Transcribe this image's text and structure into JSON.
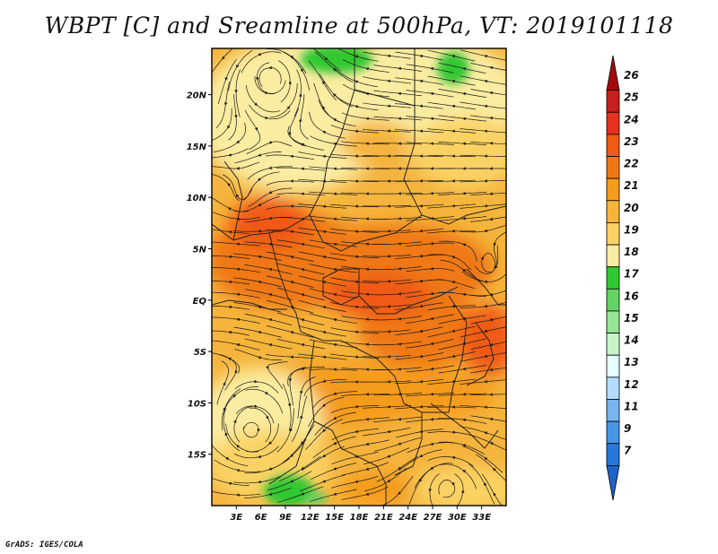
{
  "title": "WBPT [C] and Sreamline at 500hPa, VT: 2019101118",
  "credit": "GrADS: IGES/COLA",
  "map": {
    "lon_range": [
      0,
      36
    ],
    "lat_range": [
      -20,
      24.5
    ],
    "lon_ticks": [
      {
        "value": 3,
        "label": "3E"
      },
      {
        "value": 6,
        "label": "6E"
      },
      {
        "value": 9,
        "label": "9E"
      },
      {
        "value": 12,
        "label": "12E"
      },
      {
        "value": 15,
        "label": "15E"
      },
      {
        "value": 18,
        "label": "18E"
      },
      {
        "value": 21,
        "label": "21E"
      },
      {
        "value": 24,
        "label": "24E"
      },
      {
        "value": 27,
        "label": "27E"
      },
      {
        "value": 30,
        "label": "30E"
      },
      {
        "value": 33,
        "label": "33E"
      }
    ],
    "lat_ticks": [
      {
        "value": 20,
        "label": "20N"
      },
      {
        "value": 15,
        "label": "15N"
      },
      {
        "value": 10,
        "label": "10N"
      },
      {
        "value": 5,
        "label": "5N"
      },
      {
        "value": 0,
        "label": "EQ"
      },
      {
        "value": -5,
        "label": "5S"
      },
      {
        "value": -10,
        "label": "10S"
      },
      {
        "value": -15,
        "label": "15S"
      }
    ],
    "field": "WBPT [C]",
    "vector_field": "Streamline 500hPa"
  },
  "colorbar": {
    "labels": [
      "26",
      "25",
      "24",
      "23",
      "22",
      "21",
      "20",
      "19",
      "18",
      "17",
      "16",
      "15",
      "14",
      "13",
      "12",
      "11",
      "9",
      "7"
    ],
    "colors": [
      "#a50a0a",
      "#c81e1e",
      "#e6321e",
      "#f05a14",
      "#f07814",
      "#f59b1e",
      "#f5b43c",
      "#fad264",
      "#faeca0",
      "#32c832",
      "#64d264",
      "#96e696",
      "#c8f5c8",
      "#e6ffff",
      "#b4dcff",
      "#78b4f0",
      "#4696e6",
      "#2878dc",
      "#1e64c8"
    ],
    "extend": "both"
  }
}
